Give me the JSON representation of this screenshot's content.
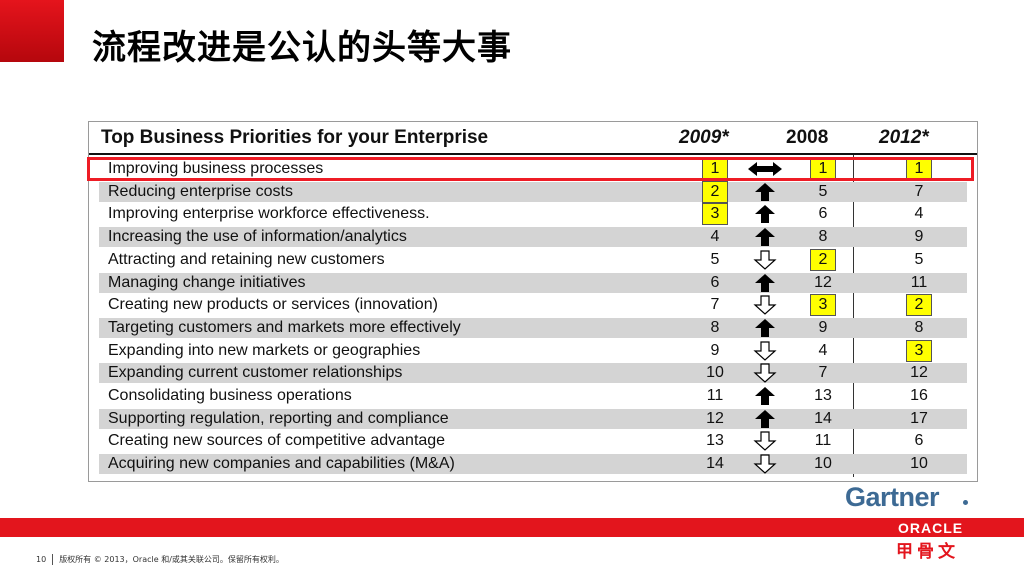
{
  "slide": {
    "title": "流程改进是公认的头等大事"
  },
  "table": {
    "title": "Top Business Priorities for your Enterprise",
    "columns": [
      "2009*",
      "2008",
      "2012*"
    ],
    "rows": [
      {
        "label": "Improving business processes",
        "y2009": "1",
        "arrow": "double",
        "y2008": "1",
        "y2012": "1"
      },
      {
        "label": "Reducing enterprise costs",
        "y2009": "2",
        "arrow": "up",
        "y2008": "5",
        "y2012": "7"
      },
      {
        "label": "Improving enterprise workforce effectiveness.",
        "y2009": "3",
        "arrow": "up",
        "y2008": "6",
        "y2012": "4"
      },
      {
        "label": "Increasing the use of information/analytics",
        "y2009": "4",
        "arrow": "up",
        "y2008": "8",
        "y2012": "9"
      },
      {
        "label": "Attracting and retaining new customers",
        "y2009": "5",
        "arrow": "down",
        "y2008": "2",
        "y2012": "5"
      },
      {
        "label": "Managing change initiatives",
        "y2009": "6",
        "arrow": "up",
        "y2008": "12",
        "y2012": "11"
      },
      {
        "label": "Creating new products or services (innovation)",
        "y2009": "7",
        "arrow": "down",
        "y2008": "3",
        "y2012": "2"
      },
      {
        "label": "Targeting customers and markets more effectively",
        "y2009": "8",
        "arrow": "up",
        "y2008": "9",
        "y2012": "8"
      },
      {
        "label": "Expanding into new markets or geographies",
        "y2009": "9",
        "arrow": "down",
        "y2008": "4",
        "y2012": "3"
      },
      {
        "label": "Expanding current customer relationships",
        "y2009": "10",
        "arrow": "down",
        "y2008": "7",
        "y2012": "12"
      },
      {
        "label": "Consolidating business operations",
        "y2009": "11",
        "arrow": "up",
        "y2008": "13",
        "y2012": "16"
      },
      {
        "label": "Supporting regulation, reporting and compliance",
        "y2009": "12",
        "arrow": "up",
        "y2008": "14",
        "y2012": "17"
      },
      {
        "label": "Creating new sources of competitive advantage",
        "y2009": "13",
        "arrow": "down",
        "y2008": "11",
        "y2012": "6"
      },
      {
        "label": "Acquiring new companies and capabilities (M&A)",
        "y2009": "14",
        "arrow": "down",
        "y2008": "10",
        "y2012": "10"
      }
    ],
    "highlighted_2009": [
      "1",
      "2",
      "3"
    ],
    "highlighted_2008": [
      "1",
      "2",
      "3"
    ],
    "highlighted_2012": [
      "1",
      "2",
      "3"
    ]
  },
  "brand": {
    "gartner": "Gartner",
    "oracle": "ORACLE",
    "oracle_cn": "甲骨文"
  },
  "footer": {
    "page_number": "10",
    "copyright": "版权所有 © 2013，Oracle 和/或其关联公司。保留所有权利。"
  },
  "colors": {
    "accent_red": "#e3151d",
    "highlight_yellow": "#ffff00",
    "row_shade": "#d4d4d4",
    "gartner_blue": "#3d6a94"
  }
}
